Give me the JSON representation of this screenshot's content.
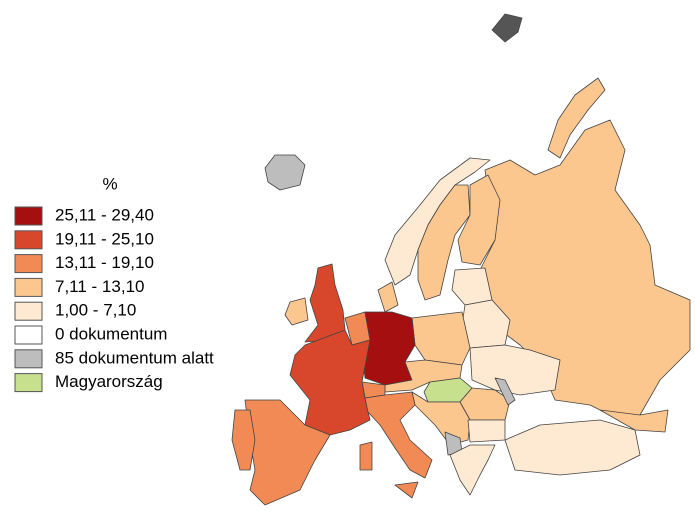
{
  "legend": {
    "title": "%",
    "items": [
      {
        "label": "25,11 -  29,40",
        "color": "#a50f0f"
      },
      {
        "label": "19,11 -  25,10",
        "color": "#d8472b"
      },
      {
        "label": "13,11 -  19,10",
        "color": "#f28a56"
      },
      {
        "label": "7,11 -  13,10",
        "color": "#fcc78f"
      },
      {
        "label": "1,00 -    7,10",
        "color": "#feead2"
      },
      {
        "label": "0 dokumentum",
        "color": "#ffffff"
      },
      {
        "label": "85 dokumentum alatt",
        "color": "#bdbdbd"
      },
      {
        "label": "Magyarország",
        "color": "#c6e08e"
      }
    ]
  }
}
